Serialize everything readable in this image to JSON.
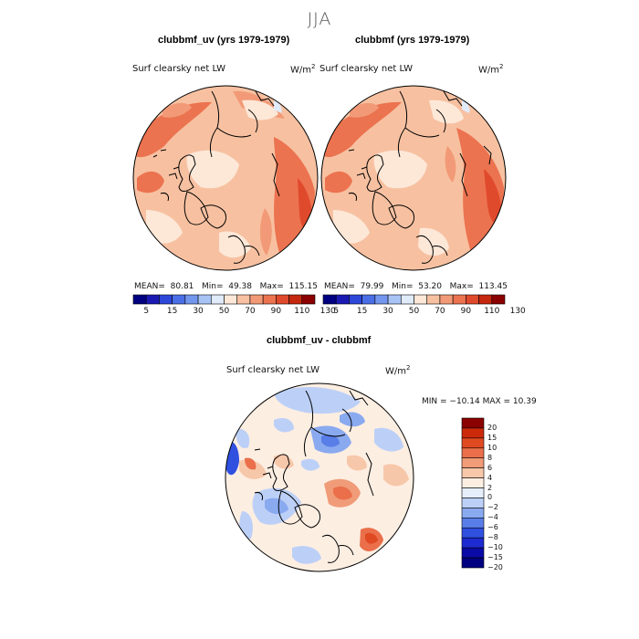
{
  "season": "JJA",
  "colors": {
    "hbar": [
      "#000080",
      "#1a1ab3",
      "#2d47d9",
      "#4a6ee6",
      "#7397ee",
      "#a8c4f5",
      "#e0ebfa",
      "#fde8d8",
      "#f7c1a1",
      "#f29a77",
      "#ec7350",
      "#e04a2c",
      "#c5270f",
      "#8b0000"
    ],
    "vbar": [
      "#000080",
      "#0a0aa6",
      "#1d2bd0",
      "#3050e0",
      "#5a7ee8",
      "#8aaaf0",
      "#bcd0f7",
      "#e6eefb",
      "#fdeee2",
      "#f7c7aa",
      "#f19c78",
      "#ea6f4a",
      "#e04a22",
      "#cc2a0a",
      "#8b0000"
    ]
  },
  "chart_data": [
    {
      "type": "heatmap",
      "title": "clubbmf_uv (yrs 1979-1979)",
      "variable": "Surf clearsky net LW",
      "units": "W/m2",
      "stats": {
        "mean": "80.81",
        "min": "49.38",
        "max": "115.15"
      },
      "stats_text": {
        "mean_label": "MEAN=",
        "mean": "80.81",
        "min_label": "Min=",
        "min": "49.38",
        "max_label": "Max=",
        "max": "115.15"
      },
      "colorbar_ticks": [
        "5",
        "15",
        "30",
        "50",
        "70",
        "90",
        "110",
        "130"
      ]
    },
    {
      "type": "heatmap",
      "title": "clubbmf (yrs 1979-1979)",
      "variable": "Surf clearsky net LW",
      "units": "W/m2",
      "stats": {
        "mean": "79.99",
        "min": "53.20",
        "max": "113.45"
      },
      "stats_text": {
        "mean_label": "MEAN=",
        "mean": "79.99",
        "min_label": "Min=",
        "min": "53.20",
        "max_label": "Max=",
        "max": "113.45"
      },
      "colorbar_ticks": [
        "5",
        "15",
        "30",
        "50",
        "70",
        "90",
        "110",
        "130"
      ]
    },
    {
      "type": "heatmap",
      "title": "clubbmf_uv - clubbmf",
      "variable": "Surf clearsky net LW",
      "units": "W/m2",
      "stats": {
        "min": "-10.14",
        "max": "10.39"
      },
      "stats_text": "MIN = −10.14 MAX =  10.39",
      "colorbar_ticks": [
        "20",
        "15",
        "10",
        "8",
        "6",
        "4",
        "2",
        "0",
        "−2",
        "−4",
        "−6",
        "−8",
        "−10",
        "−15",
        "−20"
      ]
    }
  ]
}
